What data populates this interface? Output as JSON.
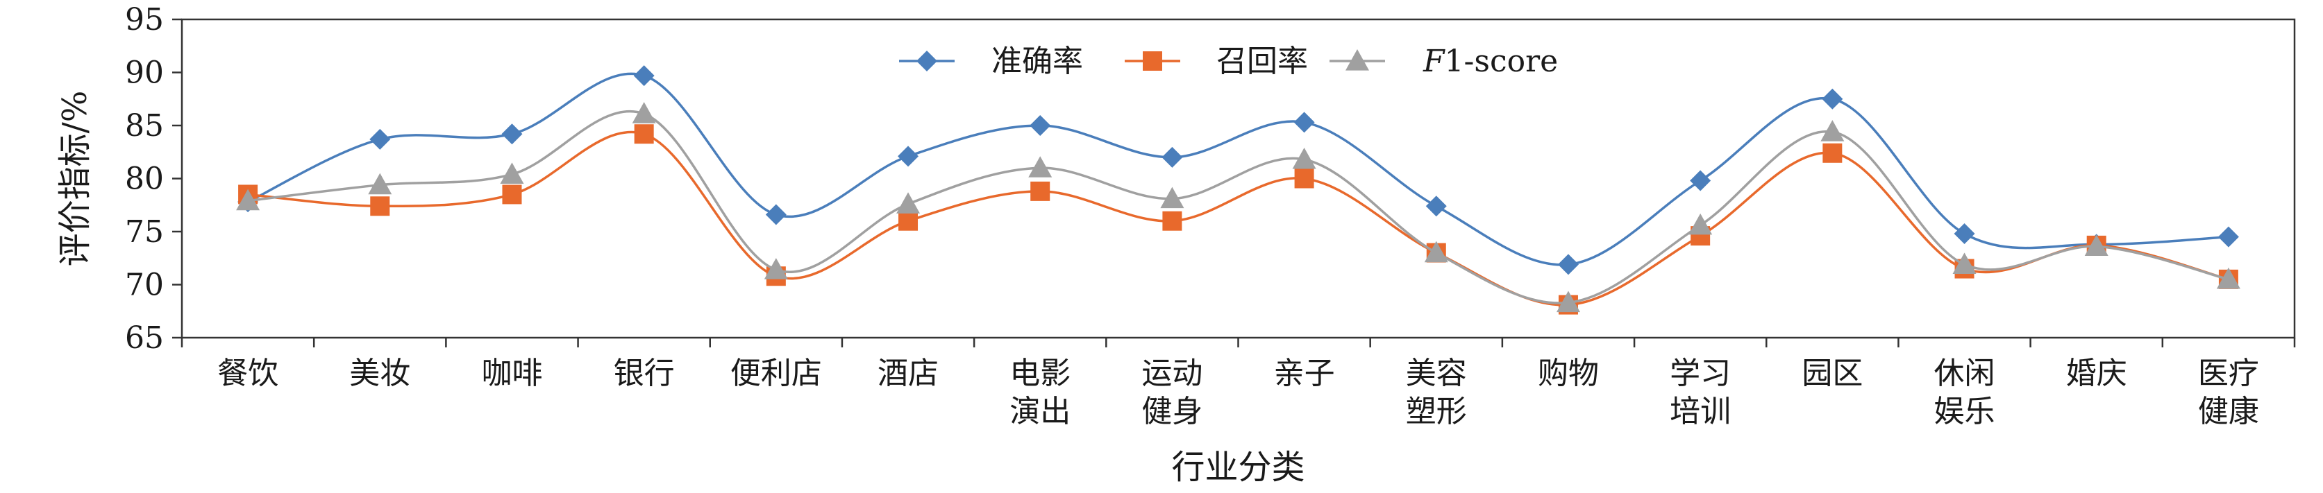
{
  "chart_data": {
    "type": "line",
    "smooth": true,
    "categories": [
      [
        "餐饮"
      ],
      [
        "美妆"
      ],
      [
        "咖啡"
      ],
      [
        "银行"
      ],
      [
        "便利店"
      ],
      [
        "酒店"
      ],
      [
        "电影",
        "演出"
      ],
      [
        "运动",
        "健身"
      ],
      [
        "亲子"
      ],
      [
        "美容",
        "塑形"
      ],
      [
        "购物"
      ],
      [
        "学习",
        "培训"
      ],
      [
        "园区"
      ],
      [
        "休闲",
        "娱乐"
      ],
      [
        "婚庆"
      ],
      [
        "医疗",
        "健康"
      ]
    ],
    "series": [
      {
        "name": "准确率",
        "color": "#4a7ebb",
        "marker": "diamond",
        "values": [
          77.8,
          83.7,
          84.2,
          89.7,
          76.6,
          82.1,
          85.0,
          82.0,
          85.3,
          77.4,
          71.9,
          79.8,
          87.5,
          74.8,
          73.8,
          74.5
        ]
      },
      {
        "name": "召回率",
        "color": "#e8692c",
        "marker": "square",
        "values": [
          78.5,
          77.4,
          78.5,
          84.2,
          70.8,
          76.0,
          78.8,
          76.0,
          80.0,
          73.0,
          68.1,
          74.6,
          82.4,
          71.5,
          73.7,
          70.5
        ]
      },
      {
        "name_parts": [
          "F",
          "1-score"
        ],
        "color": "#a0a0a0",
        "marker": "triangle",
        "values": [
          77.9,
          79.4,
          80.4,
          86.1,
          71.4,
          77.6,
          81.0,
          78.1,
          81.8,
          73.0,
          68.3,
          75.6,
          84.4,
          71.9,
          73.6,
          70.5
        ]
      }
    ],
    "ylabel": "评价指标/%",
    "xlabel": "行业分类",
    "ylim": [
      65,
      95
    ],
    "yticks": [
      "65",
      "70",
      "75",
      "80",
      "85",
      "90",
      "95"
    ],
    "grid": false,
    "legend_position": "top-center"
  }
}
